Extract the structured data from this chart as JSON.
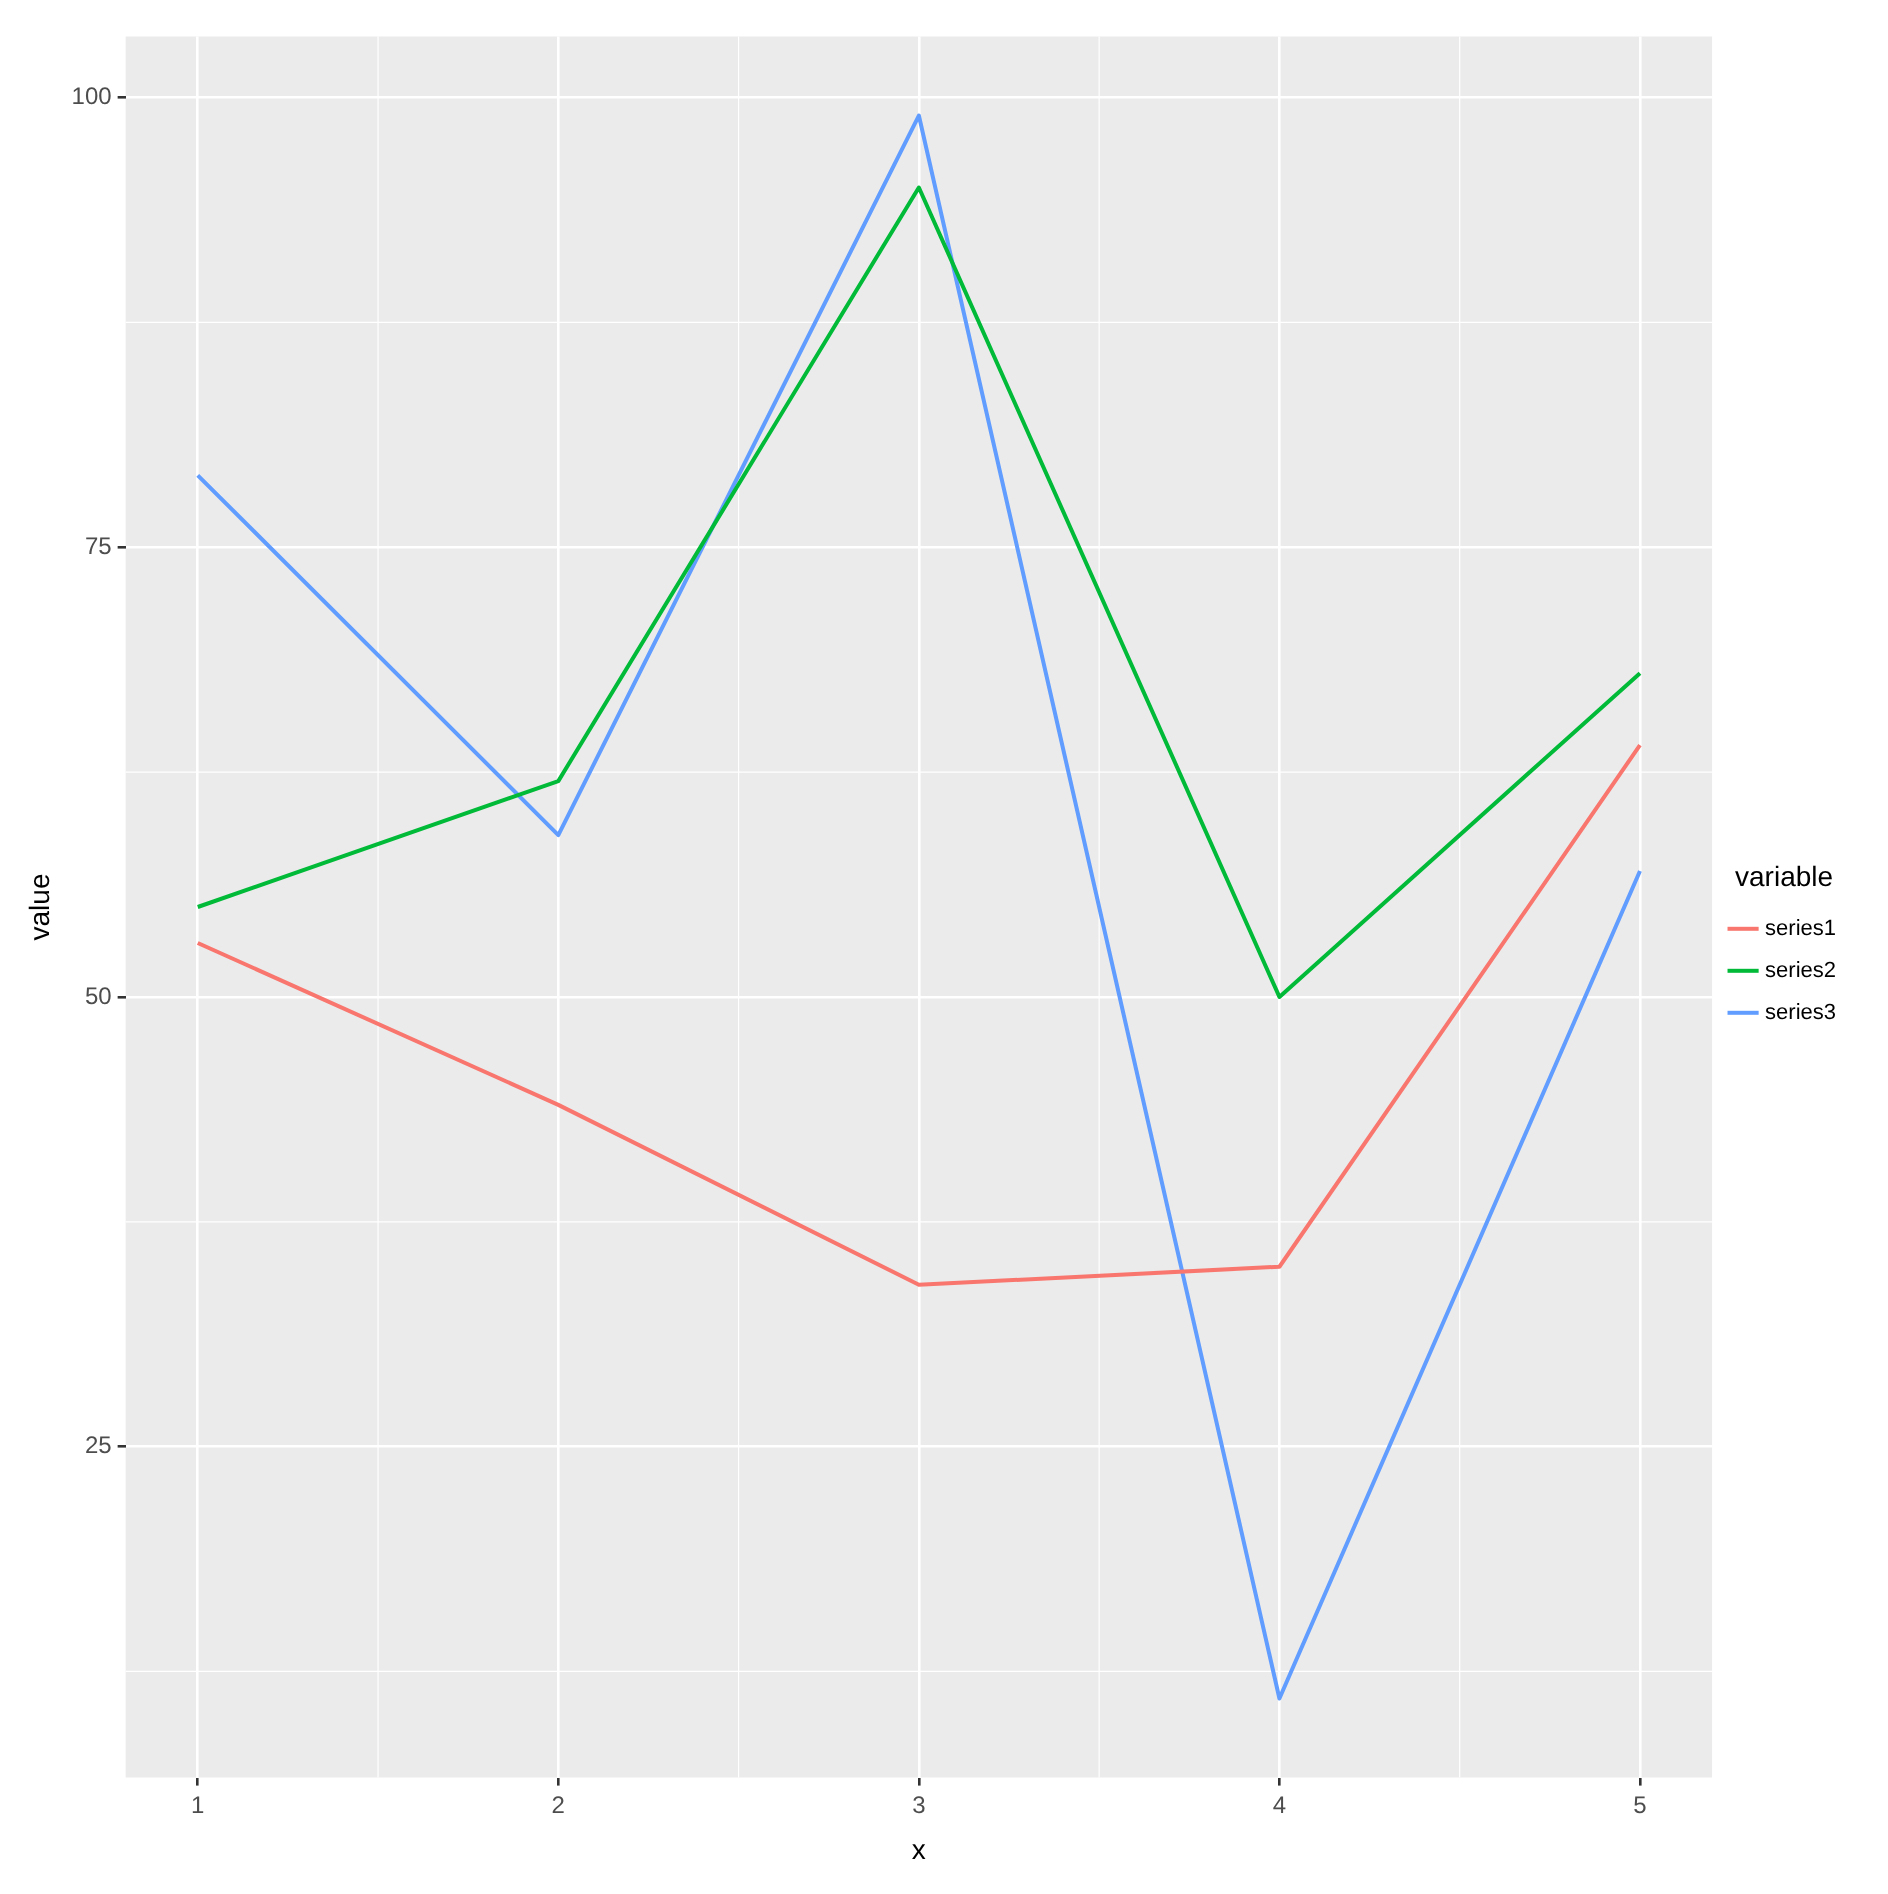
{
  "chart_data": {
    "type": "line",
    "xlabel": "x",
    "ylabel": "value",
    "legend_title": "variable",
    "x": [
      1,
      2,
      3,
      4,
      5
    ],
    "series": [
      {
        "name": "series1",
        "color": "#f8766d",
        "values": [
          53,
          44,
          34,
          35,
          64
        ]
      },
      {
        "name": "series2",
        "color": "#00ba38",
        "values": [
          55,
          62,
          95,
          50,
          68
        ]
      },
      {
        "name": "series3",
        "color": "#619cff",
        "values": [
          79,
          59,
          99,
          11,
          57
        ]
      }
    ],
    "xlim": [
      0.8,
      5.2
    ],
    "xticks": [
      1,
      2,
      3,
      4,
      5
    ],
    "ylim": [
      6.6,
      103.4
    ],
    "yticks": [
      25,
      50,
      75,
      100
    ],
    "grid": true,
    "legend": "right",
    "marker": "none",
    "line_style": "solid"
  }
}
